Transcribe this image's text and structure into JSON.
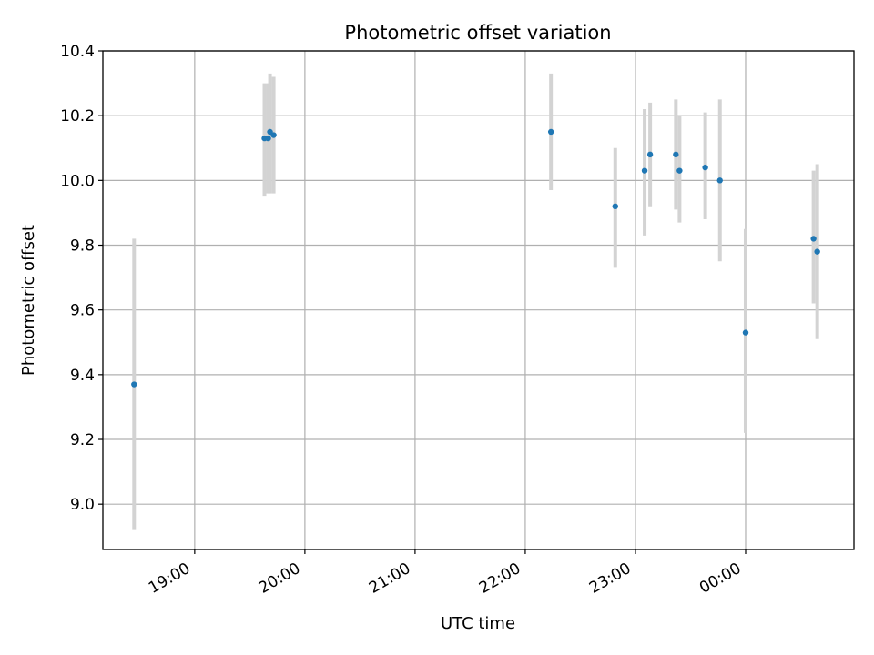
{
  "chart_data": {
    "type": "scatter",
    "title": "Photometric offset variation",
    "xlabel": "UTC time",
    "ylabel": "Photometric offset",
    "grid": true,
    "x_unit": "UTC time (HH:MM, wraps past midnight)",
    "xlim": [
      "18:10",
      "00:59"
    ],
    "ylim": [
      8.86,
      10.4
    ],
    "x_ticks": [
      "19:00",
      "20:00",
      "21:00",
      "22:00",
      "23:00",
      "00:00"
    ],
    "y_ticks": [
      "9.0",
      "9.2",
      "9.4",
      "9.6",
      "9.8",
      "10.0",
      "10.2",
      "10.4"
    ],
    "colors": {
      "point": "#1f77b4",
      "errorbar": "#d3d3d3",
      "grid": "#b0b0b0"
    },
    "series": [
      {
        "points": [
          {
            "x": "18:27",
            "y": 9.37,
            "ylow": 8.92,
            "yhigh": 9.82
          },
          {
            "x": "19:38",
            "y": 10.13,
            "ylow": 9.95,
            "yhigh": 10.3
          },
          {
            "x": "19:40",
            "y": 10.13,
            "ylow": 9.96,
            "yhigh": 10.3
          },
          {
            "x": "19:41",
            "y": 10.15,
            "ylow": 9.96,
            "yhigh": 10.33
          },
          {
            "x": "19:43",
            "y": 10.14,
            "ylow": 9.96,
            "yhigh": 10.32
          },
          {
            "x": "22:14",
            "y": 10.15,
            "ylow": 9.97,
            "yhigh": 10.33
          },
          {
            "x": "22:49",
            "y": 9.92,
            "ylow": 9.73,
            "yhigh": 10.1
          },
          {
            "x": "23:05",
            "y": 10.03,
            "ylow": 9.83,
            "yhigh": 10.22
          },
          {
            "x": "23:08",
            "y": 10.08,
            "ylow": 9.92,
            "yhigh": 10.24
          },
          {
            "x": "23:22",
            "y": 10.08,
            "ylow": 9.91,
            "yhigh": 10.25
          },
          {
            "x": "23:24",
            "y": 10.03,
            "ylow": 9.87,
            "yhigh": 10.2
          },
          {
            "x": "23:38",
            "y": 10.04,
            "ylow": 9.88,
            "yhigh": 10.21
          },
          {
            "x": "23:46",
            "y": 10.0,
            "ylow": 9.75,
            "yhigh": 10.25
          },
          {
            "x": "00:00",
            "y": 9.53,
            "ylow": 9.22,
            "yhigh": 9.85
          },
          {
            "x": "00:37",
            "y": 9.82,
            "ylow": 9.62,
            "yhigh": 10.03
          },
          {
            "x": "00:39",
            "y": 9.78,
            "ylow": 9.51,
            "yhigh": 10.05
          }
        ]
      }
    ]
  }
}
